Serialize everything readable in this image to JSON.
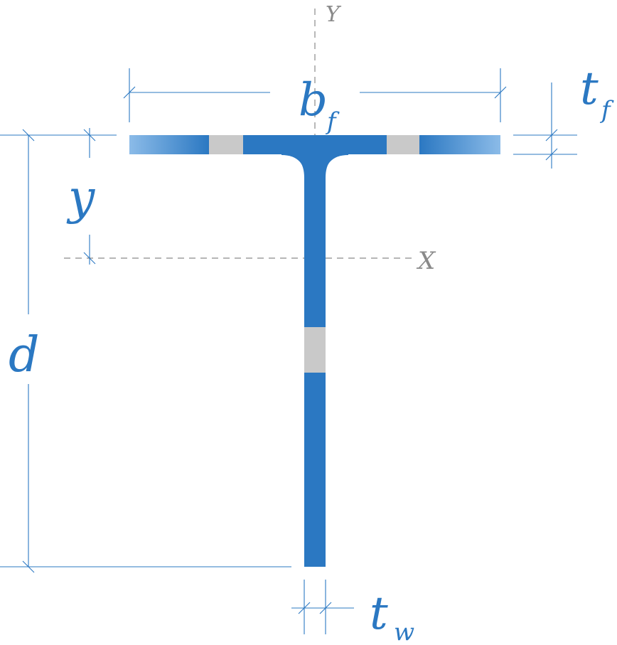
{
  "colors": {
    "steel": "#2b78c2",
    "steel_light": "#7fb2e3",
    "hatch_gray": "#c9c9c9",
    "dimension": "#2b78c2",
    "axis": "#8a8a8a"
  },
  "labels": {
    "flange_width_main": "b",
    "flange_width_sub": "f",
    "flange_thickness_main": "t",
    "flange_thickness_sub": "f",
    "web_thickness_main": "t",
    "web_thickness_sub": "w",
    "depth": "d",
    "centroid_distance": "y",
    "x_axis": "X",
    "y_axis": "Y"
  }
}
